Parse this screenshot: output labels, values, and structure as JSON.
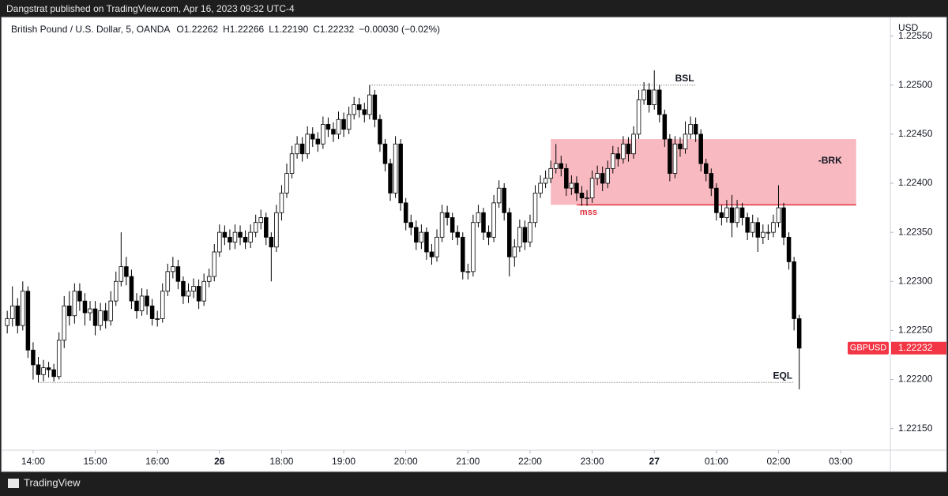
{
  "header": {
    "publisher": "Dangstrat published on TradingView.com, Apr 16, 2023 09:32 UTC-4"
  },
  "footer": {
    "brand": "TradingView"
  },
  "chart_data": {
    "type": "candlestick",
    "symbol": "British Pound / U.S. Dollar, 5, OANDA",
    "ohlc_labels": [
      "O1.22262",
      "H1.22266",
      "L1.22190",
      "C1.22232",
      "−0.00030 (−0.02%)"
    ],
    "currency": "USD",
    "up_color": "#ffffff",
    "down_color": "#000000",
    "outline_color": "#000000",
    "xlim": [
      -32,
      828
    ],
    "ylim": [
      1.22128,
      1.22569
    ],
    "xticks": [
      {
        "value": 0,
        "label": "14:00"
      },
      {
        "value": 60,
        "label": "15:00"
      },
      {
        "value": 120,
        "label": "16:00"
      },
      {
        "value": 180,
        "label": "26"
      },
      {
        "value": 240,
        "label": "18:00"
      },
      {
        "value": 300,
        "label": "19:00"
      },
      {
        "value": 360,
        "label": "20:00"
      },
      {
        "value": 420,
        "label": "21:00"
      },
      {
        "value": 480,
        "label": "22:00"
      },
      {
        "value": 540,
        "label": "23:00"
      },
      {
        "value": 600,
        "label": "27"
      },
      {
        "value": 660,
        "label": "01:00"
      },
      {
        "value": 720,
        "label": "02:00"
      },
      {
        "value": 780,
        "label": "03:00"
      }
    ],
    "yticks": [
      {
        "value": 1.2255,
        "label": "1.22550"
      },
      {
        "value": 1.225,
        "label": "1.22500"
      },
      {
        "value": 1.2245,
        "label": "1.22450"
      },
      {
        "value": 1.224,
        "label": "1.22400"
      },
      {
        "value": 1.2235,
        "label": "1.22350"
      },
      {
        "value": 1.223,
        "label": "1.22300"
      },
      {
        "value": 1.2225,
        "label": "1.22250"
      },
      {
        "value": 1.222,
        "label": "1.22200"
      },
      {
        "value": 1.2215,
        "label": "1.22150"
      }
    ],
    "x": [
      -25,
      -20,
      -15,
      -10,
      -5,
      0,
      5,
      10,
      15,
      20,
      25,
      30,
      35,
      40,
      45,
      50,
      55,
      60,
      65,
      70,
      75,
      80,
      85,
      90,
      95,
      100,
      105,
      110,
      115,
      120,
      125,
      130,
      135,
      140,
      145,
      150,
      155,
      160,
      165,
      170,
      175,
      180,
      185,
      190,
      195,
      200,
      205,
      210,
      215,
      220,
      225,
      230,
      235,
      240,
      245,
      250,
      255,
      260,
      265,
      270,
      275,
      280,
      285,
      290,
      295,
      300,
      305,
      310,
      315,
      320,
      325,
      330,
      335,
      340,
      345,
      350,
      355,
      360,
      365,
      370,
      375,
      380,
      385,
      390,
      395,
      400,
      405,
      410,
      415,
      420,
      425,
      430,
      435,
      440,
      445,
      450,
      455,
      460,
      465,
      470,
      475,
      480,
      485,
      490,
      495,
      500,
      505,
      510,
      515,
      520,
      525,
      530,
      535,
      540,
      545,
      550,
      555,
      560,
      565,
      570,
      575,
      580,
      585,
      590,
      595,
      600,
      605,
      610,
      615,
      620,
      625,
      630,
      635,
      640,
      645,
      650,
      655,
      660,
      665,
      670,
      675,
      680,
      685,
      690,
      695,
      700,
      705,
      710,
      715,
      720,
      725,
      730,
      735,
      740
    ],
    "candles": [
      [
        1.22255,
        1.2227,
        1.22247,
        1.22262
      ],
      [
        1.22262,
        1.22295,
        1.22254,
        1.22275
      ],
      [
        1.22275,
        1.22283,
        1.22247,
        1.22255
      ],
      [
        1.22255,
        1.223,
        1.2225,
        1.2229
      ],
      [
        1.2229,
        1.22295,
        1.22222,
        1.2223
      ],
      [
        1.2223,
        1.22238,
        1.222,
        1.22215
      ],
      [
        1.22215,
        1.22223,
        1.22197,
        1.22205
      ],
      [
        1.22205,
        1.2222,
        1.22198,
        1.22212
      ],
      [
        1.22212,
        1.22218,
        1.22202,
        1.2221
      ],
      [
        1.2221,
        1.22216,
        1.22198,
        1.22203
      ],
      [
        1.22203,
        1.22248,
        1.222,
        1.2224
      ],
      [
        1.2224,
        1.22285,
        1.22232,
        1.22275
      ],
      [
        1.22275,
        1.2229,
        1.22255,
        1.22265
      ],
      [
        1.22265,
        1.22298,
        1.22257,
        1.2229
      ],
      [
        1.2229,
        1.22298,
        1.2227,
        1.2228
      ],
      [
        1.2228,
        1.22288,
        1.22255,
        1.22268
      ],
      [
        1.22268,
        1.2228,
        1.2226,
        1.22272
      ],
      [
        1.22272,
        1.2228,
        1.22245,
        1.22255
      ],
      [
        1.22255,
        1.22278,
        1.2225,
        1.2227
      ],
      [
        1.2227,
        1.22278,
        1.22252,
        1.2226
      ],
      [
        1.2226,
        1.2229,
        1.22255,
        1.2228
      ],
      [
        1.2228,
        1.2231,
        1.22275,
        1.223
      ],
      [
        1.223,
        1.2235,
        1.22295,
        1.22315
      ],
      [
        1.22315,
        1.22325,
        1.22296,
        1.22305
      ],
      [
        1.22305,
        1.22312,
        1.22272,
        1.2228
      ],
      [
        1.2228,
        1.22288,
        1.22262,
        1.2227
      ],
      [
        1.2227,
        1.22293,
        1.22265,
        1.22285
      ],
      [
        1.22285,
        1.22292,
        1.22266,
        1.22275
      ],
      [
        1.22275,
        1.22282,
        1.22255,
        1.22262
      ],
      [
        1.22262,
        1.2227,
        1.22254,
        1.22262
      ],
      [
        1.22262,
        1.22298,
        1.22258,
        1.2229
      ],
      [
        1.2229,
        1.22318,
        1.22285,
        1.2231
      ],
      [
        1.2231,
        1.22325,
        1.22303,
        1.22315
      ],
      [
        1.22315,
        1.22322,
        1.22292,
        1.223
      ],
      [
        1.223,
        1.22305,
        1.22277,
        1.22285
      ],
      [
        1.22285,
        1.22298,
        1.22278,
        1.2229
      ],
      [
        1.2229,
        1.22303,
        1.22283,
        1.22295
      ],
      [
        1.22295,
        1.22302,
        1.22272,
        1.2228
      ],
      [
        1.2228,
        1.22308,
        1.22275,
        1.223
      ],
      [
        1.223,
        1.22313,
        1.22294,
        1.22305
      ],
      [
        1.22305,
        1.22338,
        1.223,
        1.2233
      ],
      [
        1.2233,
        1.22358,
        1.22325,
        1.2235
      ],
      [
        1.2235,
        1.22357,
        1.22337,
        1.22345
      ],
      [
        1.22345,
        1.22353,
        1.22332,
        1.2234
      ],
      [
        1.2234,
        1.22358,
        1.22333,
        1.2235
      ],
      [
        1.2235,
        1.22357,
        1.22337,
        1.22345
      ],
      [
        1.22345,
        1.22352,
        1.22333,
        1.2234
      ],
      [
        1.2234,
        1.22358,
        1.22334,
        1.2235
      ],
      [
        1.2235,
        1.22368,
        1.22345,
        1.2236
      ],
      [
        1.2236,
        1.22373,
        1.22353,
        1.22365
      ],
      [
        1.22365,
        1.2237,
        1.22337,
        1.22345
      ],
      [
        1.22345,
        1.2235,
        1.223,
        1.22335
      ],
      [
        1.22335,
        1.22378,
        1.2233,
        1.2237
      ],
      [
        1.2237,
        1.22398,
        1.22362,
        1.2239
      ],
      [
        1.2239,
        1.2242,
        1.22385,
        1.2241
      ],
      [
        1.2241,
        1.22438,
        1.22405,
        1.2243
      ],
      [
        1.2243,
        1.22448,
        1.22425,
        1.2244
      ],
      [
        1.2244,
        1.22447,
        1.22422,
        1.2243
      ],
      [
        1.2243,
        1.22458,
        1.22425,
        1.2245
      ],
      [
        1.2245,
        1.22457,
        1.22437,
        1.22445
      ],
      [
        1.22445,
        1.22452,
        1.22432,
        1.2244
      ],
      [
        1.2244,
        1.22468,
        1.22435,
        1.2246
      ],
      [
        1.2246,
        1.22467,
        1.22447,
        1.22455
      ],
      [
        1.22455,
        1.22462,
        1.22442,
        1.2245
      ],
      [
        1.2245,
        1.22473,
        1.22445,
        1.22465
      ],
      [
        1.22465,
        1.22472,
        1.22447,
        1.22455
      ],
      [
        1.22455,
        1.22478,
        1.2245,
        1.2247
      ],
      [
        1.2247,
        1.22488,
        1.22465,
        1.2248
      ],
      [
        1.2248,
        1.22487,
        1.22467,
        1.22475
      ],
      [
        1.22475,
        1.22482,
        1.22462,
        1.2247
      ],
      [
        1.2247,
        1.225,
        1.22465,
        1.2249
      ],
      [
        1.2249,
        1.22495,
        1.22457,
        1.22465
      ],
      [
        1.22465,
        1.2247,
        1.22432,
        1.2244
      ],
      [
        1.2244,
        1.22445,
        1.22412,
        1.2242
      ],
      [
        1.2242,
        1.22425,
        1.22382,
        1.2239
      ],
      [
        1.2239,
        1.22448,
        1.22385,
        1.2244
      ],
      [
        1.2244,
        1.22445,
        1.22372,
        1.2238
      ],
      [
        1.2238,
        1.22385,
        1.22352,
        1.2236
      ],
      [
        1.2236,
        1.22368,
        1.22347,
        1.22355
      ],
      [
        1.22355,
        1.22362,
        1.22332,
        1.2234
      ],
      [
        1.2234,
        1.22358,
        1.22333,
        1.2235
      ],
      [
        1.2235,
        1.22355,
        1.22322,
        1.2233
      ],
      [
        1.2233,
        1.22338,
        1.22317,
        1.22325
      ],
      [
        1.22325,
        1.22353,
        1.2232,
        1.22345
      ],
      [
        1.22345,
        1.22378,
        1.2234,
        1.2237
      ],
      [
        1.2237,
        1.22377,
        1.22357,
        1.22365
      ],
      [
        1.22365,
        1.2237,
        1.22342,
        1.2235
      ],
      [
        1.2235,
        1.22357,
        1.22337,
        1.22345
      ],
      [
        1.22345,
        1.2235,
        1.22302,
        1.2231
      ],
      [
        1.2231,
        1.22318,
        1.22302,
        1.2231
      ],
      [
        1.2231,
        1.22368,
        1.22305,
        1.2236
      ],
      [
        1.2236,
        1.22378,
        1.22355,
        1.2237
      ],
      [
        1.2237,
        1.22375,
        1.22342,
        1.2235
      ],
      [
        1.2235,
        1.22357,
        1.22337,
        1.22345
      ],
      [
        1.22345,
        1.22388,
        1.2234,
        1.2238
      ],
      [
        1.2238,
        1.22403,
        1.22375,
        1.22395
      ],
      [
        1.22395,
        1.224,
        1.22362,
        1.2237
      ],
      [
        1.2237,
        1.22375,
        1.22305,
        1.22325
      ],
      [
        1.22325,
        1.22343,
        1.22315,
        1.22335
      ],
      [
        1.22335,
        1.22363,
        1.2233,
        1.22355
      ],
      [
        1.22355,
        1.22362,
        1.22332,
        1.2234
      ],
      [
        1.2234,
        1.22368,
        1.22335,
        1.2236
      ],
      [
        1.2236,
        1.22398,
        1.22355,
        1.2239
      ],
      [
        1.2239,
        1.22408,
        1.22385,
        1.224
      ],
      [
        1.224,
        1.22413,
        1.22395,
        1.22405
      ],
      [
        1.22405,
        1.22423,
        1.224,
        1.22415
      ],
      [
        1.22415,
        1.2244,
        1.2241,
        1.2242
      ],
      [
        1.2242,
        1.22428,
        1.22407,
        1.22415
      ],
      [
        1.22415,
        1.2242,
        1.22387,
        1.22395
      ],
      [
        1.22395,
        1.22408,
        1.22388,
        1.224
      ],
      [
        1.224,
        1.22407,
        1.22382,
        1.2239
      ],
      [
        1.2239,
        1.22397,
        1.22377,
        1.22385
      ],
      [
        1.22385,
        1.22393,
        1.22377,
        1.22385
      ],
      [
        1.22385,
        1.22413,
        1.2238,
        1.22405
      ],
      [
        1.22405,
        1.22418,
        1.22398,
        1.2241
      ],
      [
        1.2241,
        1.22417,
        1.22392,
        1.224
      ],
      [
        1.224,
        1.22423,
        1.22395,
        1.22415
      ],
      [
        1.22415,
        1.22438,
        1.2241,
        1.2243
      ],
      [
        1.2243,
        1.22437,
        1.22417,
        1.22425
      ],
      [
        1.22425,
        1.22448,
        1.2242,
        1.2244
      ],
      [
        1.2244,
        1.22447,
        1.22422,
        1.2243
      ],
      [
        1.2243,
        1.22458,
        1.22425,
        1.2245
      ],
      [
        1.2245,
        1.22495,
        1.22445,
        1.22485
      ],
      [
        1.22485,
        1.22503,
        1.2248,
        1.22495
      ],
      [
        1.22495,
        1.22502,
        1.22472,
        1.2248
      ],
      [
        1.2248,
        1.22515,
        1.22475,
        1.22495
      ],
      [
        1.22495,
        1.225,
        1.22462,
        1.2247
      ],
      [
        1.2247,
        1.22475,
        1.22437,
        1.22445
      ],
      [
        1.22445,
        1.2245,
        1.22402,
        1.2241
      ],
      [
        1.2241,
        1.22448,
        1.22405,
        1.2244
      ],
      [
        1.2244,
        1.22447,
        1.22427,
        1.22435
      ],
      [
        1.22435,
        1.22463,
        1.2243,
        1.2245
      ],
      [
        1.2245,
        1.22468,
        1.22445,
        1.2246
      ],
      [
        1.2246,
        1.22467,
        1.22442,
        1.2245
      ],
      [
        1.2245,
        1.22455,
        1.22412,
        1.2242
      ],
      [
        1.2242,
        1.22425,
        1.22402,
        1.2241
      ],
      [
        1.2241,
        1.22415,
        1.22387,
        1.22395
      ],
      [
        1.22395,
        1.224,
        1.22362,
        1.2237
      ],
      [
        1.2237,
        1.22378,
        1.22357,
        1.22365
      ],
      [
        1.22365,
        1.22383,
        1.2236,
        1.22375
      ],
      [
        1.22375,
        1.22388,
        1.22345,
        1.2236
      ],
      [
        1.2236,
        1.22383,
        1.22355,
        1.22375
      ],
      [
        1.22375,
        1.2238,
        1.22357,
        1.22365
      ],
      [
        1.22365,
        1.2237,
        1.22342,
        1.2235
      ],
      [
        1.2235,
        1.22368,
        1.22345,
        1.2236
      ],
      [
        1.2236,
        1.22365,
        1.2233,
        1.22345
      ],
      [
        1.22345,
        1.22358,
        1.22338,
        1.2235
      ],
      [
        1.2235,
        1.22358,
        1.22342,
        1.2235
      ],
      [
        1.2235,
        1.22368,
        1.22345,
        1.2236
      ],
      [
        1.2236,
        1.22398,
        1.22355,
        1.22375
      ],
      [
        1.22375,
        1.2238,
        1.22337,
        1.22345
      ],
      [
        1.22345,
        1.2235,
        1.22312,
        1.2232
      ],
      [
        1.2232,
        1.22325,
        1.2225,
        1.22262
      ],
      [
        1.22262,
        1.22266,
        1.2219,
        1.22232
      ]
    ],
    "levels": [
      {
        "text": "BSL",
        "price": 1.225,
        "from": 325,
        "to": 640
      },
      {
        "text": "EQL",
        "price": 1.22197,
        "from": 5,
        "to": 735
      }
    ],
    "zone": {
      "text": "-BRK",
      "top": 1.22445,
      "bottom": 1.22378,
      "from": 500,
      "to": 795,
      "color": "#f9b9c1"
    },
    "mss": {
      "text": "mss",
      "price": 1.22378,
      "from": 525,
      "to": 795,
      "color": "#e0303d"
    },
    "price_tag": {
      "label": "GBPUSD",
      "value": 1.22232,
      "color": "#f23645"
    }
  }
}
